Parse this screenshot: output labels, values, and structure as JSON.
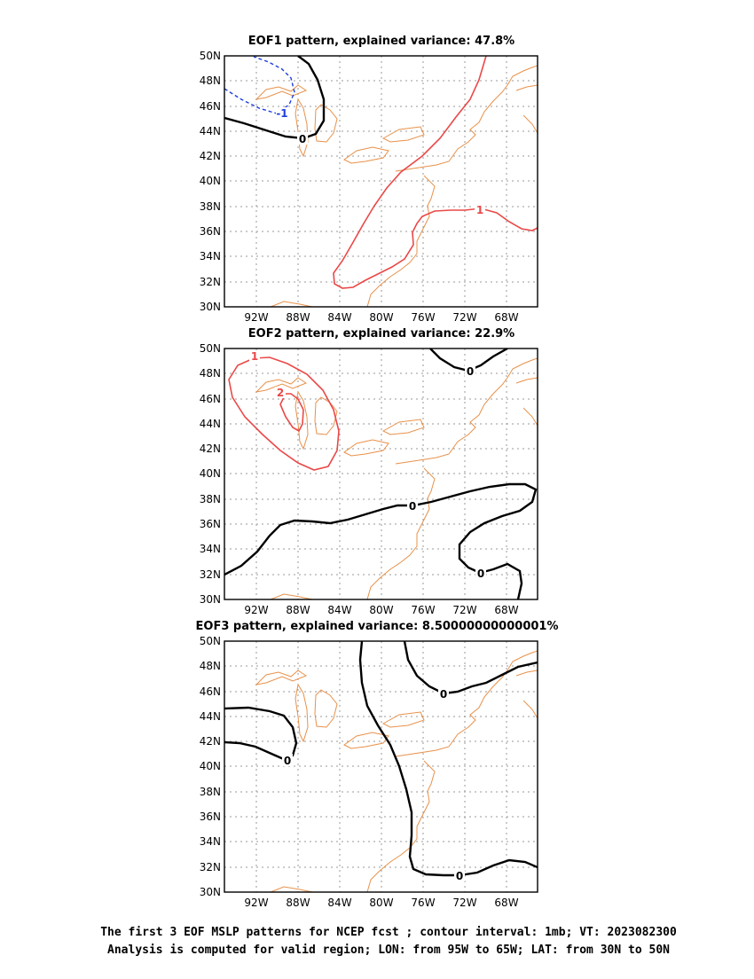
{
  "panels": [
    {
      "title": "EOF1 pattern, explained variance: 47.8%",
      "contours": [
        {
          "level": "-1"
        },
        {
          "level": "0"
        },
        {
          "level": "1"
        }
      ]
    },
    {
      "title": "EOF2 pattern, explained variance: 22.9%",
      "contours": [
        {
          "level": "1"
        },
        {
          "level": "2"
        },
        {
          "level": "0"
        }
      ]
    },
    {
      "title": "EOF3 pattern, explained variance: 8.50000000000001%",
      "contours": [
        {
          "level": "0"
        }
      ]
    }
  ],
  "axes": {
    "x_ticks": [
      "92W",
      "88W",
      "84W",
      "80W",
      "76W",
      "72W",
      "68W"
    ],
    "y_ticks": [
      "50N",
      "48N",
      "46N",
      "44N",
      "42N",
      "40N",
      "38N",
      "36N",
      "34N",
      "32N",
      "30N"
    ]
  },
  "footer": {
    "line1": "The first 3 EOF MSLP patterns for NCEP fcst ; contour interval: 1mb; VT: 2023082300",
    "line2": "Analysis is computed for valid region; LON: from 95W to 65W; LAT: from 30N to 50N"
  },
  "colors": {
    "positive_contour": "#ea4848",
    "negative_contour": "#1f3fe0",
    "zero_contour": "#000000",
    "coastline": "#e8914a",
    "grid": "#999999"
  }
}
